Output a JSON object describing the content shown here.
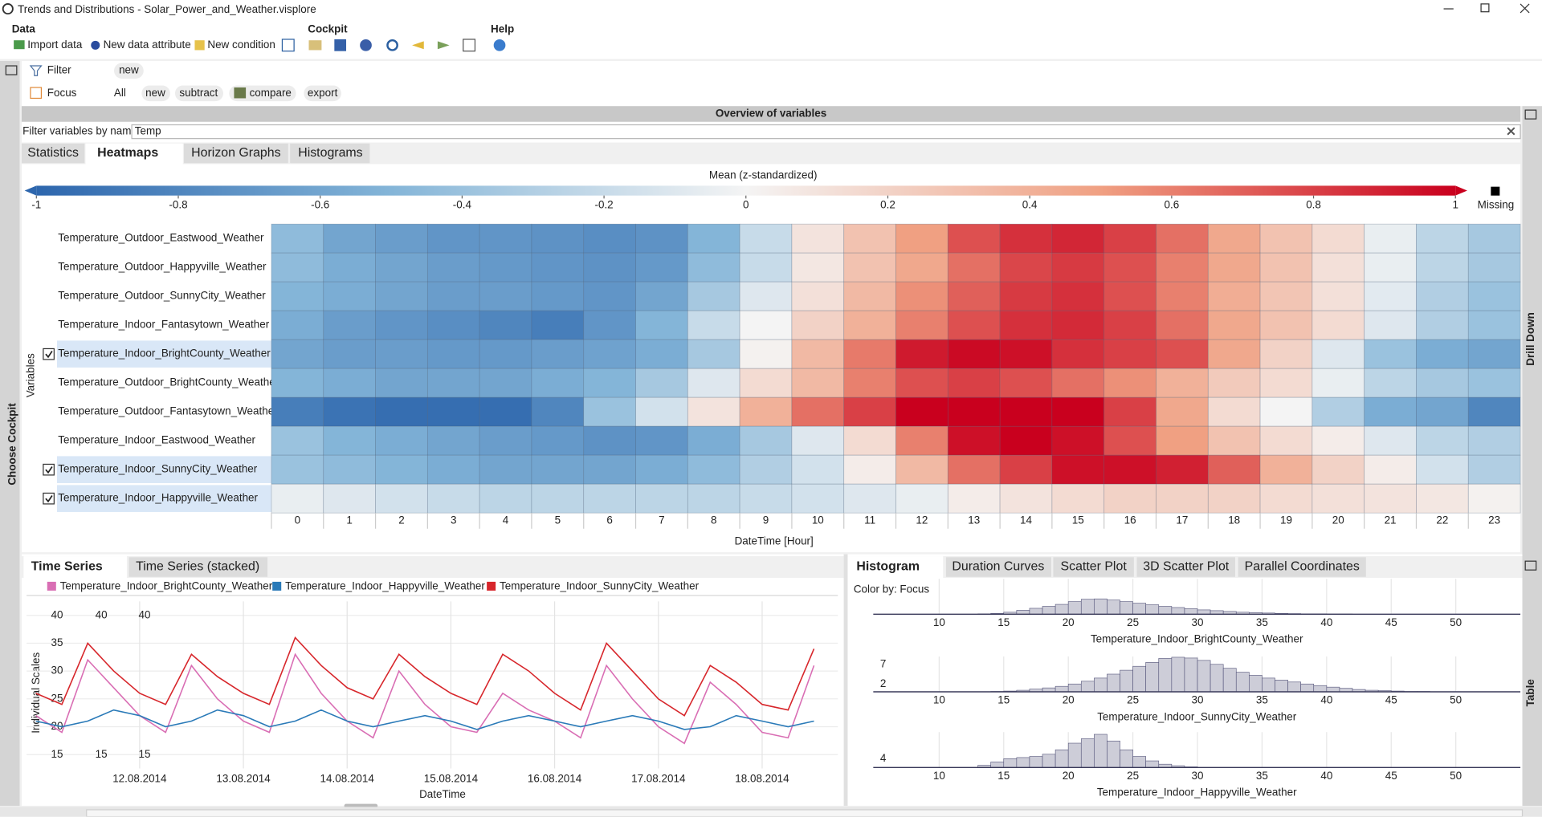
{
  "window": {
    "title": "Trends and Distributions - Solar_Power_and_Weather.visplore"
  },
  "toolbar": {
    "data": {
      "title": "Data",
      "items": [
        "Import data",
        "New data attribute",
        "New condition"
      ]
    },
    "cockpit": {
      "title": "Cockpit"
    },
    "help": {
      "title": "Help"
    }
  },
  "filter": {
    "label": "Filter",
    "buttons": [
      "new"
    ]
  },
  "focus": {
    "label": "Focus",
    "buttons": [
      "All",
      "new",
      "subtract",
      "compare",
      "export"
    ]
  },
  "side_panels": {
    "left": "Choose Cockpit",
    "right_top": "Drill Down",
    "right_bottom": "Table"
  },
  "overview": {
    "title": "Overview of variables",
    "filter_label": "Filter variables by name:",
    "filter_value": "Temp",
    "tabs": [
      "Statistics",
      "Heatmaps",
      "Horizon Graphs",
      "Histograms"
    ]
  },
  "bottom_left": {
    "tabs": [
      "Time Series",
      "Time Series (stacked)"
    ]
  },
  "bottom_right": {
    "tabs": [
      "Histogram",
      "Duration Curves",
      "Scatter Plot",
      "3D Scatter Plot",
      "Parallel Coordinates"
    ],
    "color_by": "Color by: Focus"
  },
  "chart_data": [
    {
      "type": "heatmap",
      "colorbar_title": "Mean (z-standardized)",
      "x_label": "DateTime [Hour]",
      "y_label": "Variables",
      "missing_label": "Missing",
      "missing_color": "#000000",
      "zlim": [
        -1,
        1
      ],
      "zticks": [
        -1,
        -0.8,
        -0.6,
        -0.4,
        -0.2,
        0,
        0.2,
        0.4,
        0.6,
        0.8,
        1
      ],
      "colormap": [
        "#2d66ad",
        "#84b5d8",
        "#f4f4f4",
        "#f0a082",
        "#c9001e"
      ],
      "x": [
        0,
        1,
        2,
        3,
        4,
        5,
        6,
        7,
        8,
        9,
        10,
        11,
        12,
        13,
        14,
        15,
        16,
        17,
        18,
        19,
        20,
        21,
        22,
        23
      ],
      "rows": [
        "Temperature_Outdoor_Eastwood_Weather",
        "Temperature_Outdoor_Happyville_Weather",
        "Temperature_Outdoor_SunnyCity_Weather",
        "Temperature_Indoor_Fantasytown_Weather",
        "Temperature_Indoor_BrightCounty_Weather",
        "Temperature_Outdoor_BrightCounty_Weather",
        "Temperature_Outdoor_Fantasytown_Weather",
        "Temperature_Indoor_Eastwood_Weather",
        "Temperature_Indoor_SunnyCity_Weather",
        "Temperature_Indoor_Happyville_Weather"
      ],
      "checked": [
        false,
        false,
        false,
        false,
        true,
        false,
        false,
        false,
        true,
        true
      ],
      "values": [
        [
          -0.45,
          -0.6,
          -0.65,
          -0.7,
          -0.7,
          -0.72,
          -0.75,
          -0.72,
          -0.5,
          -0.2,
          0.1,
          0.3,
          0.5,
          0.75,
          0.85,
          0.88,
          0.8,
          0.65,
          0.45,
          0.3,
          0.15,
          -0.05,
          -0.25,
          -0.35
        ],
        [
          -0.45,
          -0.55,
          -0.6,
          -0.65,
          -0.68,
          -0.7,
          -0.72,
          -0.68,
          -0.45,
          -0.2,
          0.08,
          0.3,
          0.45,
          0.65,
          0.78,
          0.82,
          0.75,
          0.6,
          0.45,
          0.3,
          0.12,
          -0.05,
          -0.25,
          -0.35
        ],
        [
          -0.5,
          -0.55,
          -0.6,
          -0.65,
          -0.65,
          -0.68,
          -0.7,
          -0.6,
          -0.35,
          -0.1,
          0.12,
          0.35,
          0.55,
          0.7,
          0.82,
          0.85,
          0.75,
          0.6,
          0.42,
          0.28,
          0.12,
          -0.08,
          -0.3,
          -0.4
        ],
        [
          -0.55,
          -0.65,
          -0.7,
          -0.75,
          -0.8,
          -0.85,
          -0.7,
          -0.5,
          -0.2,
          0,
          0.2,
          0.4,
          0.6,
          0.75,
          0.85,
          0.87,
          0.8,
          0.65,
          0.45,
          0.3,
          0.15,
          -0.1,
          -0.3,
          -0.4
        ],
        [
          -0.6,
          -0.65,
          -0.65,
          -0.68,
          -0.68,
          -0.65,
          -0.62,
          -0.55,
          -0.35,
          0.02,
          0.35,
          0.62,
          0.92,
          0.97,
          0.95,
          0.85,
          0.8,
          0.75,
          0.45,
          0.2,
          -0.1,
          -0.4,
          -0.55,
          -0.6
        ],
        [
          -0.5,
          -0.55,
          -0.6,
          -0.6,
          -0.6,
          -0.55,
          -0.5,
          -0.35,
          -0.1,
          0.15,
          0.35,
          0.6,
          0.75,
          0.8,
          0.75,
          0.65,
          0.55,
          0.4,
          0.25,
          0.15,
          -0.05,
          -0.25,
          -0.35,
          -0.4
        ],
        [
          -0.85,
          -0.92,
          -0.95,
          -0.95,
          -0.95,
          -0.8,
          -0.4,
          -0.15,
          0.1,
          0.4,
          0.65,
          0.8,
          1,
          1,
          1,
          1,
          0.8,
          0.45,
          0.15,
          0,
          -0.3,
          -0.55,
          -0.6,
          -0.8
        ],
        [
          -0.4,
          -0.5,
          -0.55,
          -0.6,
          -0.65,
          -0.68,
          -0.72,
          -0.7,
          -0.55,
          -0.35,
          -0.1,
          0.15,
          0.6,
          0.95,
          1,
          0.95,
          0.75,
          0.5,
          0.3,
          0.15,
          0.05,
          -0.1,
          -0.25,
          -0.3
        ],
        [
          -0.4,
          -0.45,
          -0.5,
          -0.55,
          -0.6,
          -0.6,
          -0.6,
          -0.55,
          -0.45,
          -0.3,
          -0.15,
          0.05,
          0.35,
          0.65,
          0.8,
          0.95,
          0.95,
          0.9,
          0.7,
          0.4,
          0.2,
          0.05,
          -0.15,
          -0.3
        ],
        [
          -0.05,
          -0.1,
          -0.15,
          -0.2,
          -0.25,
          -0.25,
          -0.25,
          -0.25,
          -0.25,
          -0.2,
          -0.15,
          -0.1,
          -0.05,
          0.05,
          0.1,
          0.15,
          0.2,
          0.2,
          0.2,
          0.15,
          0.12,
          0.1,
          0.08,
          0.02
        ]
      ]
    },
    {
      "type": "line",
      "x_label": "DateTime",
      "y_label": "Individual Scales",
      "grid": true,
      "xlim": [
        10.91,
        18.73
      ],
      "xticks": [
        {
          "value": 12,
          "label": "12.08.2014"
        },
        {
          "value": 13,
          "label": "13.08.2014"
        },
        {
          "value": 14,
          "label": "14.08.2014"
        },
        {
          "value": 15,
          "label": "15.08.2014"
        },
        {
          "value": 16,
          "label": "16.08.2014"
        },
        {
          "value": 17,
          "label": "17.08.2014"
        },
        {
          "value": 18,
          "label": "18.08.2014"
        }
      ],
      "ylim": [
        12.5,
        42.5
      ],
      "x": [
        11,
        11.25,
        11.5,
        11.75,
        12,
        12.25,
        12.5,
        12.75,
        13,
        13.25,
        13.5,
        13.75,
        14,
        14.25,
        14.5,
        14.75,
        15,
        15.25,
        15.5,
        15.75,
        16,
        16.25,
        16.5,
        16.75,
        17,
        17.25,
        17.5,
        17.75,
        18,
        18.25,
        18.5
      ],
      "series": [
        {
          "name": "Temperature_Indoor_BrightCounty_Weather",
          "color": "#d96eb4",
          "yticks": [
            15,
            20,
            25,
            30,
            35,
            40
          ],
          "values": [
            22,
            19,
            32,
            27,
            22,
            19,
            31,
            25,
            21,
            19,
            33,
            26,
            21,
            18,
            30,
            24,
            20,
            19,
            26,
            23,
            21,
            18,
            31,
            25,
            20,
            17,
            28,
            24,
            19,
            18,
            31
          ]
        },
        {
          "name": "Temperature_Indoor_Happyville_Weather",
          "color": "#2a7ab8",
          "yticks": [
            15,
            40
          ],
          "values": [
            21,
            20,
            21,
            23,
            22,
            20,
            21,
            23,
            22,
            20,
            21,
            23,
            21,
            20,
            21,
            22,
            21,
            19.5,
            21,
            22,
            21,
            20,
            21,
            22,
            21,
            19.5,
            20,
            22,
            21,
            20,
            21
          ]
        },
        {
          "name": "Temperature_Indoor_SunnyCity_Weather",
          "color": "#d7262b",
          "yticks": [
            15,
            40
          ],
          "values": [
            26,
            24,
            35,
            30,
            26,
            24,
            33,
            29,
            26,
            24,
            36,
            31,
            27,
            25,
            33,
            29,
            26,
            24,
            33,
            30,
            26,
            23,
            35,
            30,
            25,
            22,
            31,
            28,
            24,
            23,
            34
          ]
        }
      ]
    },
    {
      "type": "histogram",
      "x_label": "Temperature_Indoor_BrightCounty_Weather",
      "xlim": [
        4.9,
        55
      ],
      "xticks": [
        10,
        15,
        20,
        25,
        30,
        35,
        40,
        45,
        50
      ],
      "ylim": [
        0,
        9
      ],
      "yticks": [],
      "color": "#cdcdd8",
      "bins": [
        5,
        6,
        7,
        8,
        9,
        10,
        11,
        12,
        13,
        14,
        15,
        16,
        17,
        18,
        19,
        20,
        21,
        22,
        23,
        24,
        25,
        26,
        27,
        28,
        29,
        30,
        31,
        32,
        33,
        34,
        35,
        36,
        37,
        38,
        39,
        40,
        41,
        42,
        43,
        44,
        45,
        46,
        47,
        48,
        49,
        50,
        51,
        52,
        53,
        54,
        55
      ],
      "counts": [
        0,
        0,
        0,
        0,
        0,
        0,
        0,
        0,
        0.1,
        0.2,
        0.5,
        1,
        1.5,
        2,
        2.5,
        3.2,
        3.8,
        3.9,
        3.6,
        3.2,
        2.8,
        2.4,
        2,
        1.7,
        1.4,
        1.1,
        0.9,
        0.7,
        0.5,
        0.4,
        0.3,
        0.2,
        0.15,
        0.1,
        0.1,
        0.05,
        0.05,
        0,
        0,
        0,
        0,
        0,
        0,
        0,
        0,
        0,
        0,
        0,
        0,
        0
      ]
    },
    {
      "type": "histogram",
      "x_label": "Temperature_Indoor_SunnyCity_Weather",
      "xlim": [
        4.9,
        55
      ],
      "xticks": [
        10,
        15,
        20,
        25,
        30,
        35,
        40,
        45,
        50
      ],
      "ylim": [
        0,
        9
      ],
      "yticks": [
        2,
        7
      ],
      "color": "#cdcdd8",
      "bins": [
        5,
        6,
        7,
        8,
        9,
        10,
        11,
        12,
        13,
        14,
        15,
        16,
        17,
        18,
        19,
        20,
        21,
        22,
        23,
        24,
        25,
        26,
        27,
        28,
        29,
        30,
        31,
        32,
        33,
        34,
        35,
        36,
        37,
        38,
        39,
        40,
        41,
        42,
        43,
        44,
        45,
        46,
        47,
        48,
        49,
        50,
        51,
        52,
        53,
        54,
        55
      ],
      "counts": [
        0,
        0,
        0,
        0,
        0,
        0,
        0,
        0,
        0,
        0.1,
        0.2,
        0.4,
        0.7,
        1,
        1.4,
        2,
        2.7,
        3.5,
        4.5,
        5.5,
        6.5,
        7.5,
        8.5,
        8.8,
        8.6,
        8,
        7,
        6,
        5,
        4.2,
        3.5,
        3,
        2.5,
        2,
        1.6,
        1.2,
        0.9,
        0.6,
        0.4,
        0.3,
        0.2,
        0.1,
        0.1,
        0,
        0,
        0,
        0,
        0,
        0,
        0
      ]
    },
    {
      "type": "histogram",
      "x_label": "Temperature_Indoor_Happyville_Weather",
      "xlim": [
        4.9,
        55
      ],
      "xticks": [
        10,
        15,
        20,
        25,
        30,
        35,
        40,
        45,
        50
      ],
      "ylim": [
        0,
        16
      ],
      "yticks": [
        4
      ],
      "color": "#cdcdd8",
      "bins": [
        5,
        6,
        7,
        8,
        9,
        10,
        11,
        12,
        13,
        14,
        15,
        16,
        17,
        18,
        19,
        20,
        21,
        22,
        23,
        24,
        25,
        26,
        27,
        28,
        29,
        30,
        31,
        32,
        33,
        34,
        35,
        36,
        37,
        38,
        39,
        40,
        41,
        42,
        43,
        44,
        45,
        46,
        47,
        48,
        49,
        50,
        51,
        52,
        53,
        54,
        55
      ],
      "counts": [
        0,
        0,
        0,
        0,
        0,
        0,
        0,
        0,
        1,
        2.5,
        4,
        4.5,
        5,
        6,
        8,
        11,
        13,
        15,
        12,
        8,
        5,
        3,
        1.5,
        0.8,
        0.3,
        0,
        0,
        0,
        0,
        0,
        0,
        0,
        0,
        0,
        0,
        0,
        0,
        0,
        0,
        0,
        0,
        0,
        0,
        0,
        0,
        0,
        0,
        0,
        0,
        0
      ]
    }
  ]
}
